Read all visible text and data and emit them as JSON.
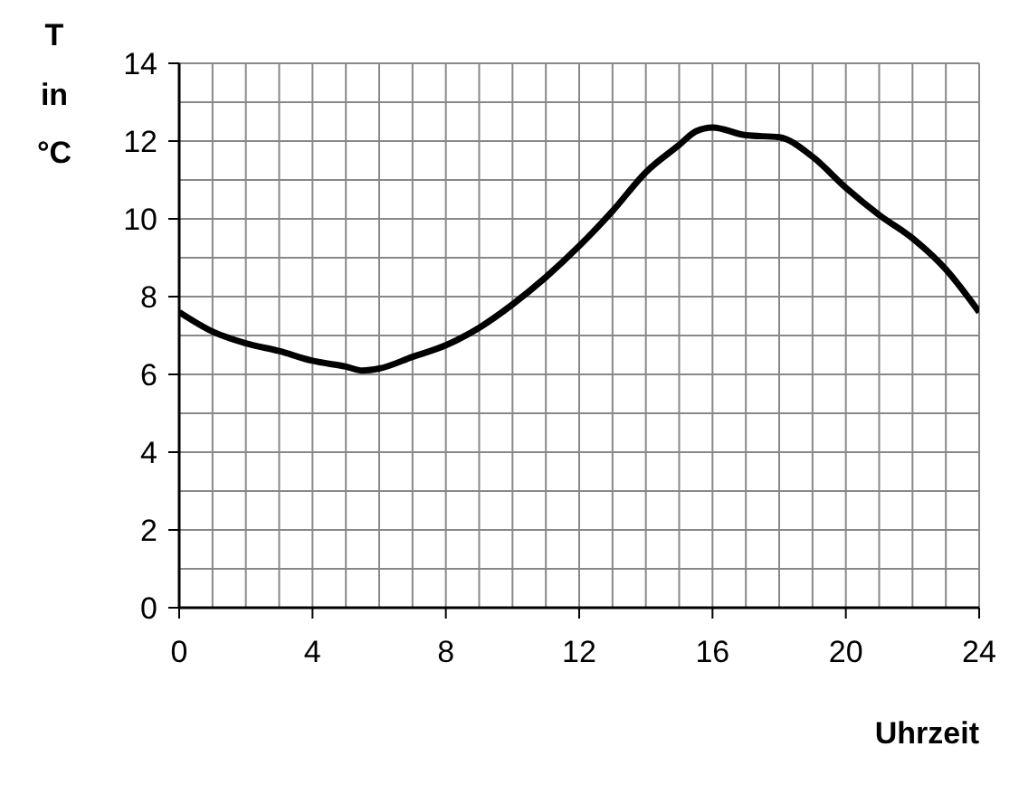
{
  "chart_data": {
    "type": "line",
    "xlabel": "Uhrzeit",
    "ylabel": "T\nin\n°C",
    "x": [
      0,
      1,
      2,
      3,
      4,
      5,
      5.5,
      6,
      7,
      8,
      9,
      10,
      11,
      12,
      13,
      14,
      15,
      15.5,
      16,
      17,
      18,
      19,
      20,
      21,
      22,
      23,
      24
    ],
    "series": [
      {
        "color": "#000000",
        "values": [
          7.6,
          7.1,
          6.8,
          6.6,
          6.35,
          6.2,
          6.1,
          6.15,
          6.45,
          6.75,
          7.2,
          7.8,
          8.5,
          9.3,
          10.2,
          11.2,
          11.9,
          12.25,
          12.35,
          12.15,
          12.1,
          11.6,
          10.8,
          10.1,
          9.5,
          8.7,
          7.6
        ]
      }
    ],
    "xlim": [
      0,
      24
    ],
    "ylim": [
      0,
      14
    ],
    "xticks": [
      0,
      {
        "value": 1,
        "label": null
      },
      {
        "value": 2,
        "label": null
      },
      {
        "value": 3,
        "label": null
      },
      4,
      {
        "value": 5,
        "label": null
      },
      {
        "value": 6,
        "label": null
      },
      {
        "value": 7,
        "label": null
      },
      8,
      {
        "value": 9,
        "label": null
      },
      {
        "value": 10,
        "label": null
      },
      {
        "value": 11,
        "label": null
      },
      12,
      {
        "value": 13,
        "label": null
      },
      {
        "value": 14,
        "label": null
      },
      {
        "value": 15,
        "label": null
      },
      16,
      {
        "value": 17,
        "label": null
      },
      {
        "value": 18,
        "label": null
      },
      {
        "value": 19,
        "label": null
      },
      20,
      {
        "value": 21,
        "label": null
      },
      {
        "value": 22,
        "label": null
      },
      {
        "value": 23,
        "label": null
      },
      24
    ],
    "yticks": [
      0,
      {
        "value": 1,
        "label": null
      },
      2,
      {
        "value": 3,
        "label": null
      },
      4,
      {
        "value": 5,
        "label": null
      },
      6,
      {
        "value": 7,
        "label": null
      },
      8,
      {
        "value": 9,
        "label": null
      },
      10,
      {
        "value": 11,
        "label": null
      },
      12,
      {
        "value": 13,
        "label": null
      },
      14
    ],
    "grid": true,
    "marker": "none",
    "line_style": "solid"
  }
}
